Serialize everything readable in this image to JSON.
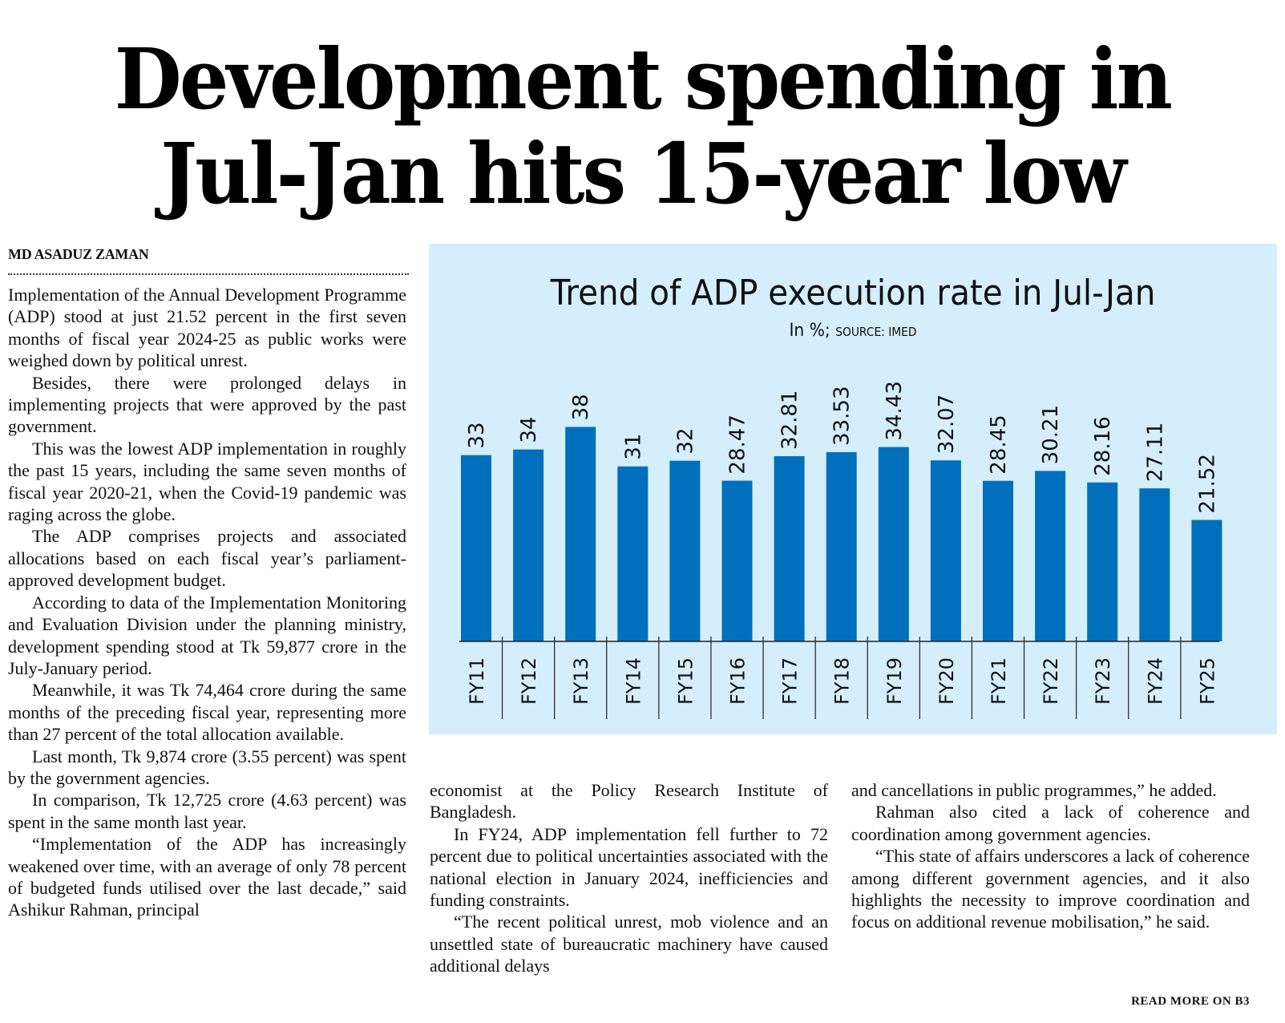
{
  "article": {
    "headline_line1": "Development spending in",
    "headline_line2": "Jul-Jan hits 15-year low",
    "byline": "MD ASADUZ ZAMAN",
    "read_more": "READ MORE ON B3",
    "column1": [
      "Implementation of the Annual Development Programme (ADP) stood at just 21.52 percent in the first seven months of fiscal year 2024-25 as public works were weighed down by political unrest.",
      "Besides, there were prolonged delays in implementing projects that were approved by the past government.",
      "This was the lowest ADP implementation in roughly the past 15 years, including the same seven months of fiscal year 2020-21, when the Covid-19 pandemic was raging across the globe.",
      "The ADP comprises projects and associated allocations based on each fiscal year’s parliament-approved development budget.",
      "According to data of the Implementation Monitoring and Evaluation Division under the planning ministry, development spending stood at Tk 59,877 crore in the July-January period.",
      "Meanwhile, it was Tk 74,464 crore during the same months of the preceding fiscal year, representing more than 27 percent of the total allocation available.",
      "Last month, Tk 9,874 crore (3.55 percent) was spent by the government agencies.",
      "In comparison, Tk 12,725 crore (4.63 percent) was spent in the same month last year.",
      "“Implementation of the ADP has increasingly weakened over time, with an average of only 78 percent of budgeted funds utilised over the last decade,” said Ashikur Rahman, principal"
    ],
    "column2": [
      "economist at the Policy Research Institute of Bangladesh.",
      "In FY24, ADP implementation fell further to 72 percent due to political uncertainties associated with the national election in January 2024, inefficiencies and funding constraints.",
      "“The recent political unrest, mob violence and an unsettled state of bureaucratic machinery have caused additional delays"
    ],
    "column3": [
      "and cancellations in public programmes,” he added.",
      "Rahman also cited a lack of coherence and coordination among government agencies.",
      "“This state of affairs underscores a lack of coherence among different government agencies, and it also highlights the necessity to improve coordination and focus on additional revenue mobilisation,” he said."
    ]
  },
  "colors": {
    "panel_background": "#d4eefb",
    "bar": "#0070bd",
    "text": "#111111"
  },
  "chart_data": {
    "type": "bar",
    "title": "Trend of ADP execution rate in Jul-Jan",
    "subtitle_unit": "In %;",
    "subtitle_source": "SOURCE: IMED",
    "xlabel": "",
    "ylabel": "",
    "ylim": [
      0,
      40
    ],
    "grid": false,
    "legend": "none",
    "categories": [
      "FY11",
      "FY12",
      "FY13",
      "FY14",
      "FY15",
      "FY16",
      "FY17",
      "FY18",
      "FY19",
      "FY20",
      "FY21",
      "FY22",
      "FY23",
      "FY24",
      "FY25"
    ],
    "values": [
      33,
      34,
      38,
      31,
      32,
      28.47,
      32.81,
      33.53,
      34.43,
      32.07,
      28.45,
      30.21,
      28.16,
      27.11,
      21.52
    ],
    "value_labels": [
      "33",
      "34",
      "38",
      "31",
      "32",
      "28.47",
      "32.81",
      "33.53",
      "34.43",
      "32.07",
      "28.45",
      "30.21",
      "28.16",
      "27.11",
      "21.52"
    ]
  }
}
